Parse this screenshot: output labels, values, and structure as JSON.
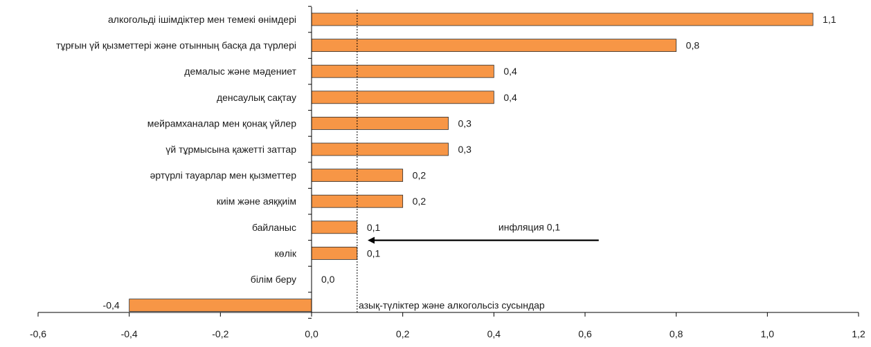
{
  "chart_data": {
    "type": "bar",
    "orientation": "horizontal",
    "categories": [
      "алкогольді ішімдіктер мен темекі өнімдері",
      "тұрғын үй қызметтері және отынның басқа да түрлері",
      "демалыс және мәдениет",
      "денсаулық сақтау",
      "мейрамханалар мен қонақ үйлер",
      "үй тұрмысына қажетті заттар",
      "әртүрлі тауарлар мен қызметтер",
      "киім және аяққиім",
      "байланыс",
      "көлік",
      "білім беру",
      "азық-түліктер және алкогольсіз сусындар"
    ],
    "values": [
      1.1,
      0.8,
      0.4,
      0.4,
      0.3,
      0.3,
      0.2,
      0.2,
      0.1,
      0.1,
      0.0,
      -0.4
    ],
    "value_labels": [
      "1,1",
      "0,8",
      "0,4",
      "0,4",
      "0,3",
      "0,3",
      "0,2",
      "0,2",
      "0,1",
      "0,1",
      "0,0",
      "-0,4"
    ],
    "xlim": [
      -0.6,
      1.2
    ],
    "x_ticks": [
      -0.6,
      -0.4,
      -0.2,
      0.0,
      0.2,
      0.4,
      0.6,
      0.8,
      1.0,
      1.2
    ],
    "x_tick_labels": [
      "-0,6",
      "-0,4",
      "-0,2",
      "0,0",
      "0,2",
      "0,4",
      "0,6",
      "0,8",
      "1,0",
      "1,2"
    ],
    "grid": false,
    "bar_color": "#F79646",
    "bar_edge_color": "#2b2b2b",
    "reference_line": {
      "value": 0.1,
      "style": "dotted"
    },
    "annotation": {
      "text": "инфляция 0,1",
      "arrow_from": [
        0.63,
        8.5
      ],
      "arrow_to": [
        0.12,
        8.5
      ]
    }
  }
}
